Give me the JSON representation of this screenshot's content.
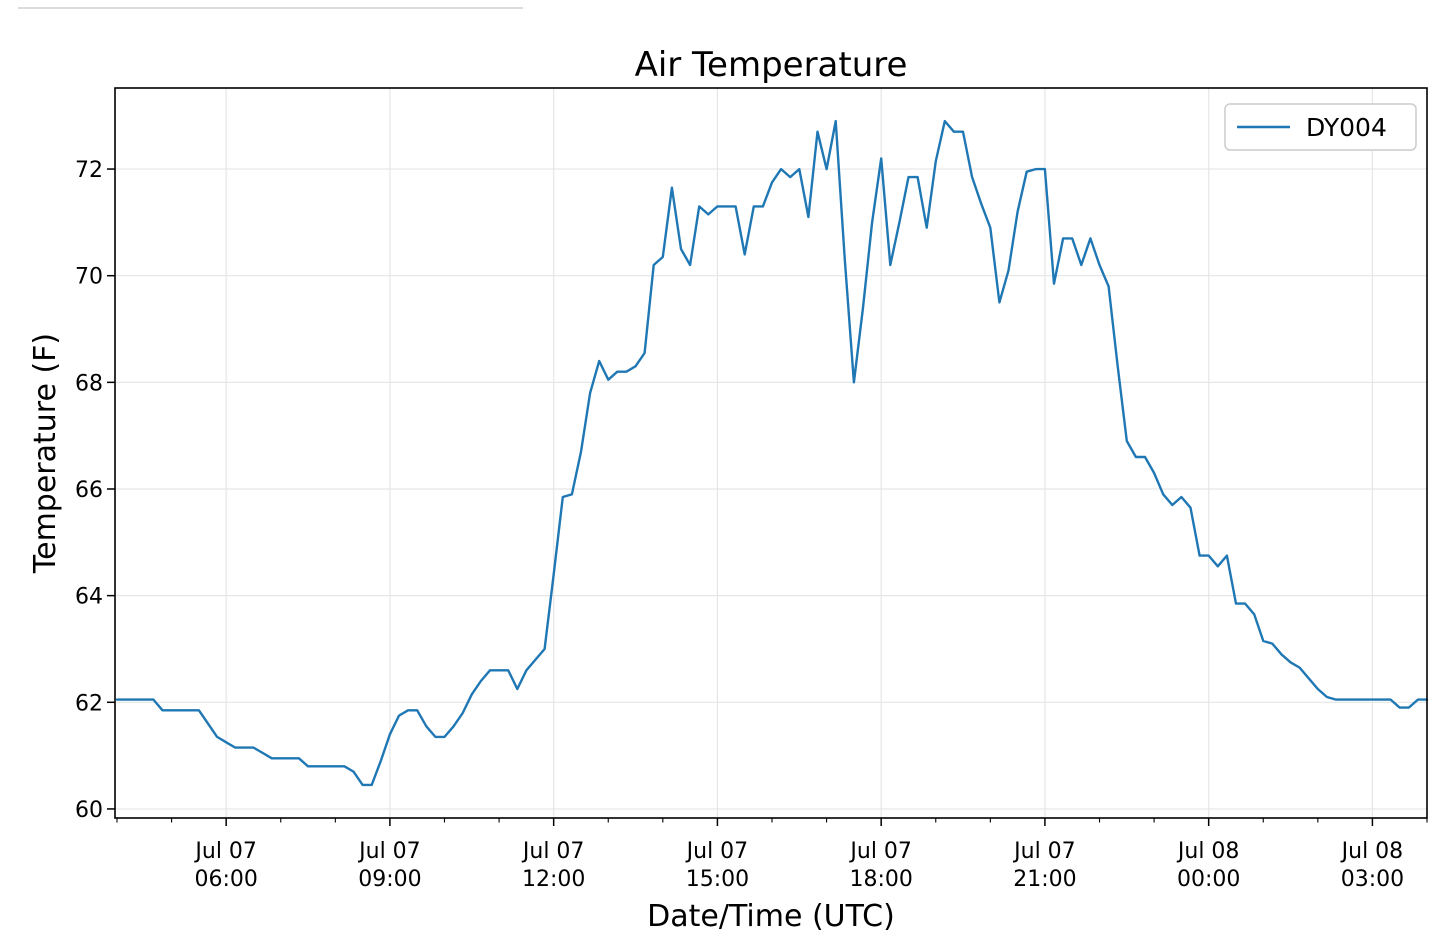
{
  "page": {
    "background": "#ffffff"
  },
  "chart": {
    "title": "Air Temperature",
    "xlabel": "Date/Time (UTC)",
    "ylabel": "Temperature (F)",
    "legend": [
      "DY004"
    ]
  },
  "chart_data": {
    "type": "line",
    "title": "Air Temperature",
    "xlabel": "Date/Time (UTC)",
    "ylabel": "Temperature (F)",
    "grid": true,
    "legend_position": "upper right",
    "line_color": "#1f77b4",
    "grid_color": "#e6e6e6",
    "spine_color": "#000000",
    "ylim": [
      59.83,
      73.52
    ],
    "y_ticks": [
      60,
      62,
      64,
      66,
      68,
      70,
      72
    ],
    "x_start": "Jul 07 04:00",
    "x_end": "Jul 08 04:00",
    "x_total_minutes": 1440,
    "x_interval_minutes": 10,
    "x_minor_tick_every_minutes": 60,
    "x_ticks": [
      {
        "minutes": 120,
        "date": "Jul 07",
        "time": "06:00"
      },
      {
        "minutes": 300,
        "date": "Jul 07",
        "time": "09:00"
      },
      {
        "minutes": 480,
        "date": "Jul 07",
        "time": "12:00"
      },
      {
        "minutes": 660,
        "date": "Jul 07",
        "time": "15:00"
      },
      {
        "minutes": 840,
        "date": "Jul 07",
        "time": "18:00"
      },
      {
        "minutes": 1020,
        "date": "Jul 07",
        "time": "21:00"
      },
      {
        "minutes": 1200,
        "date": "Jul 08",
        "time": "00:00"
      },
      {
        "minutes": 1380,
        "date": "Jul 08",
        "time": "03:00"
      }
    ],
    "series": [
      {
        "name": "DY004",
        "color": "#1f77b4",
        "values": [
          62.05,
          62.05,
          62.05,
          62.05,
          62.05,
          61.85,
          61.85,
          61.85,
          61.85,
          61.85,
          61.6,
          61.35,
          61.25,
          61.15,
          61.15,
          61.15,
          61.05,
          60.95,
          60.95,
          60.95,
          60.95,
          60.8,
          60.8,
          60.8,
          60.8,
          60.8,
          60.7,
          60.45,
          60.45,
          60.9,
          61.4,
          61.75,
          61.85,
          61.85,
          61.55,
          61.35,
          61.35,
          61.55,
          61.8,
          62.15,
          62.4,
          62.6,
          62.6,
          62.6,
          62.25,
          62.6,
          62.8,
          63.0,
          64.4,
          65.85,
          65.9,
          66.7,
          67.8,
          68.4,
          68.05,
          68.2,
          68.2,
          68.3,
          68.55,
          70.2,
          70.35,
          71.65,
          70.5,
          70.2,
          71.3,
          71.15,
          71.3,
          71.3,
          71.3,
          70.4,
          71.3,
          71.3,
          71.75,
          72.0,
          71.85,
          72.0,
          71.1,
          72.7,
          72.0,
          72.9,
          70.3,
          68.0,
          69.4,
          71.0,
          72.2,
          70.2,
          71.0,
          71.85,
          71.85,
          70.9,
          72.15,
          72.9,
          72.7,
          72.7,
          71.85,
          71.35,
          70.9,
          69.5,
          70.1,
          71.2,
          71.95,
          72.0,
          72.0,
          69.85,
          70.7,
          70.7,
          70.2,
          70.7,
          70.2,
          69.8,
          68.3,
          66.9,
          66.6,
          66.6,
          66.3,
          65.9,
          65.7,
          65.85,
          65.65,
          64.75,
          64.75,
          64.55,
          64.75,
          63.85,
          63.85,
          63.65,
          63.15,
          63.1,
          62.9,
          62.75,
          62.65,
          62.45,
          62.25,
          62.1,
          62.05,
          62.05,
          62.05,
          62.05,
          62.05,
          62.05,
          62.05,
          61.9,
          61.9,
          62.05,
          62.05
        ]
      }
    ]
  }
}
